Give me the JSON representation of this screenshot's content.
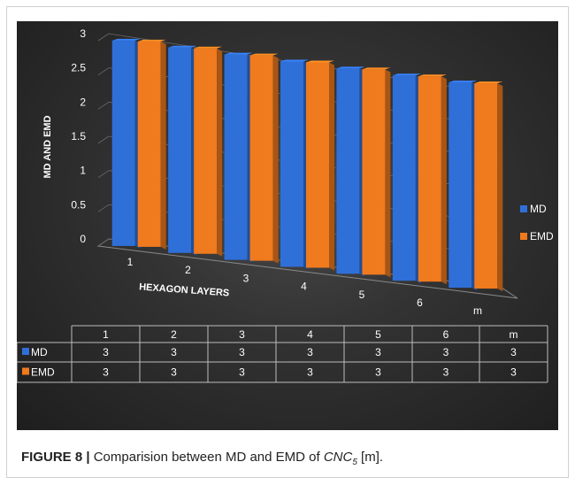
{
  "chart_data": {
    "type": "bar",
    "title": "",
    "categories": [
      "1",
      "2",
      "3",
      "4",
      "5",
      "6",
      "m"
    ],
    "series": [
      {
        "name": "MD",
        "values": [
          3,
          3,
          3,
          3,
          3,
          3,
          3
        ],
        "color": "#2f6fd8"
      },
      {
        "name": "EMD",
        "values": [
          3,
          3,
          3,
          3,
          3,
          3,
          3
        ],
        "color": "#f07a1e"
      }
    ],
    "xlabel": "HEXAGON LAYERS",
    "ylabel": "MD AND EMD",
    "ylim": [
      0,
      3
    ],
    "yticks": [
      "0",
      "0.5",
      "1",
      "1.5",
      "2",
      "2.5",
      "3"
    ],
    "grid": true,
    "legend": "right",
    "data_table": {
      "header": [
        "1",
        "2",
        "3",
        "4",
        "5",
        "6",
        "m"
      ],
      "rows": [
        {
          "label": "MD",
          "cells": [
            "3",
            "3",
            "3",
            "3",
            "3",
            "3",
            "3"
          ]
        },
        {
          "label": "EMD",
          "cells": [
            "3",
            "3",
            "3",
            "3",
            "3",
            "3",
            "3"
          ]
        }
      ]
    }
  },
  "caption": {
    "figure_label": "FIGURE 8 |",
    "text_before": " Comparision between MD and EMD of ",
    "math_main": "CNC",
    "math_sub": "5",
    "text_after": " [m]."
  }
}
